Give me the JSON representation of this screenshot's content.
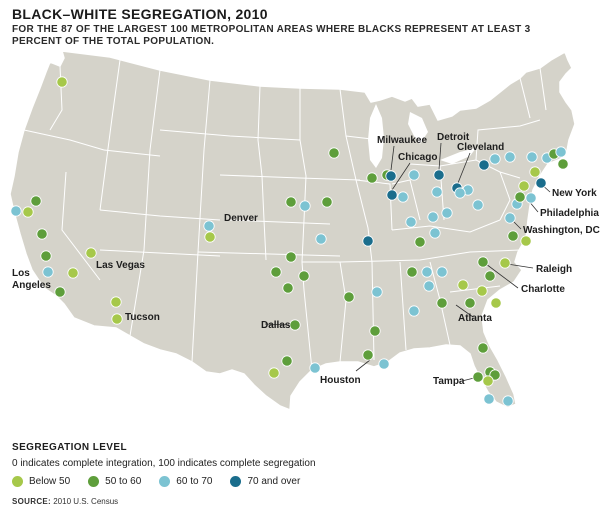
{
  "header": {
    "title": "BLACK–WHITE SEGREGATION, 2010",
    "subtitle": "FOR THE 87 OF THE LARGEST 100 METROPOLITAN AREAS WHERE BLACKS REPRESENT AT LEAST 3 PERCENT OF THE TOTAL POPULATION."
  },
  "colors": {
    "below50": "#a6c84a",
    "50to60": "#5e9e3b",
    "60to70": "#7cc3d2",
    "70over": "#1a6d8c",
    "land": "#d5d3ca",
    "border": "#ffffff"
  },
  "legend": {
    "title": "SEGREGATION LEVEL",
    "desc": "0 indicates complete integration, 100 indicates complete segregation",
    "items": [
      {
        "label": "Below 50",
        "level": "below50"
      },
      {
        "label": "50 to 60",
        "level": "50to60"
      },
      {
        "label": "60 to 70",
        "level": "60to70"
      },
      {
        "label": "70 and over",
        "level": "70over"
      }
    ]
  },
  "source": {
    "label": "SOURCE:",
    "text": "2010 U.S. Census"
  },
  "city_labels": [
    "Milwaukee",
    "Detroit",
    "Chicago",
    "Cleveland",
    "New York",
    "Philadelphia",
    "Washington, DC",
    "Denver",
    "Las Vegas",
    "Los Angeles",
    "Raleigh",
    "Charlotte",
    "Atlanta",
    "Tucson",
    "Dallas",
    "Houston",
    "Tampa"
  ]
}
